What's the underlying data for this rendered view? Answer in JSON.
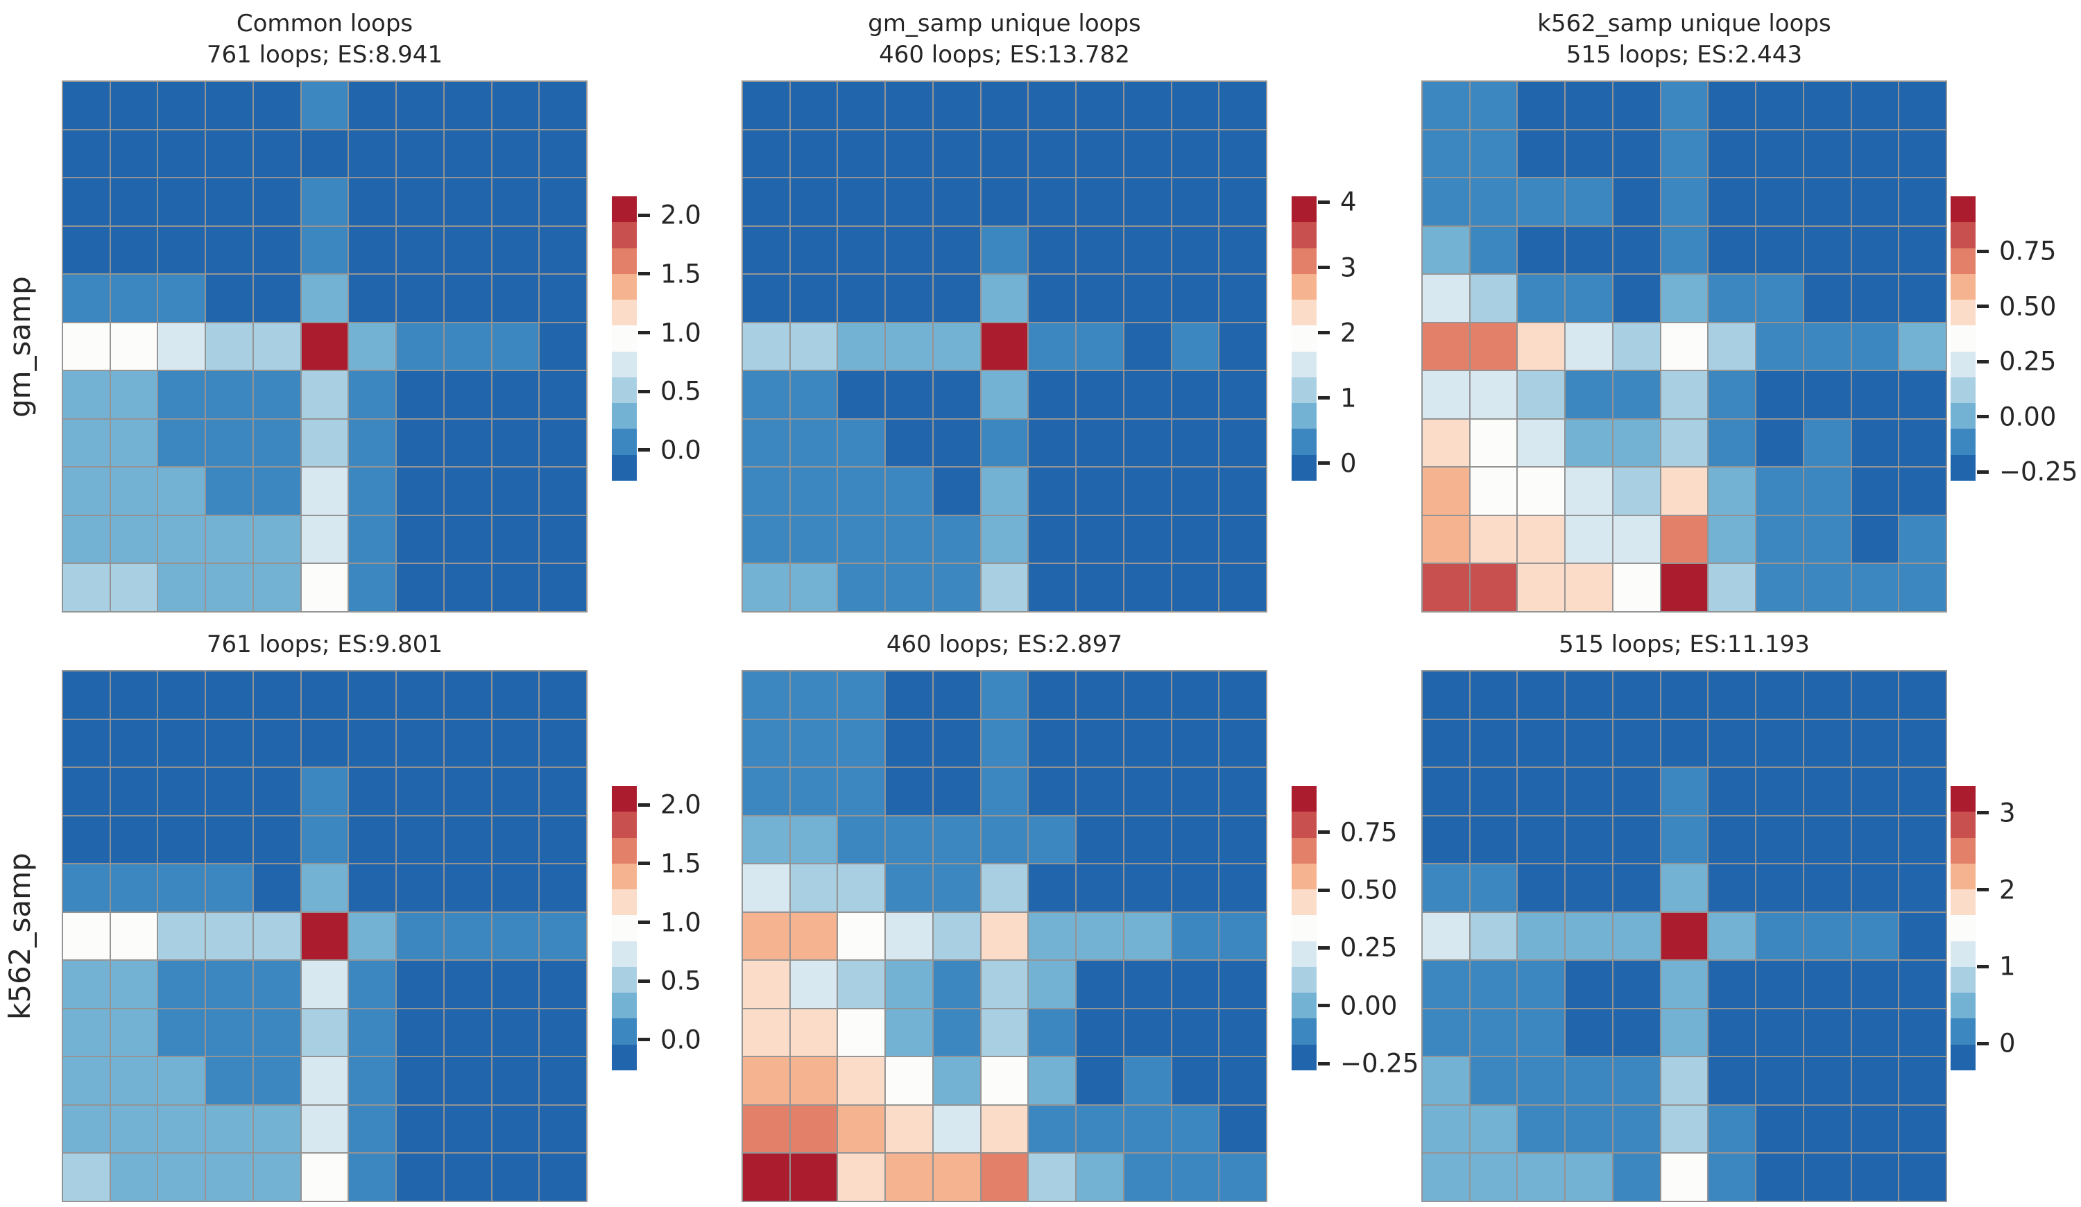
{
  "figure": {
    "background": "#ffffff",
    "text_color": "#262626",
    "grid_line_color": "#949494",
    "row_labels": [
      "gm_samp",
      "k562_samp"
    ],
    "palette": [
      "#2166ac",
      "#3c87c0",
      "#74b2d4",
      "#a9cfe3",
      "#d8e8f1",
      "#fcfcfb",
      "#fbdcc9",
      "#f5b390",
      "#e2806a",
      "#c8504e",
      "#aa1c2e"
    ]
  },
  "chart_data": [
    {
      "type": "heatmap",
      "panel": "top-left",
      "title": "Common loops",
      "subtitle": "761 loops; ES:8.941",
      "row_label": "gm_samp",
      "loops": 761,
      "enrichment_score": 8.941,
      "vmin": -0.26,
      "vmax": 2.16,
      "legend_position": "right",
      "colorbar_tick_values": [
        2.0,
        1.5,
        1.0,
        0.5,
        0.0
      ],
      "colorbar_tick_labels": [
        "2.0",
        "1.5",
        "1.0",
        "0.5",
        "0.0"
      ],
      "values": [
        [
          -0.15,
          -0.15,
          -0.15,
          -0.15,
          -0.15,
          0.07,
          -0.15,
          -0.15,
          -0.15,
          -0.15,
          -0.15
        ],
        [
          -0.15,
          -0.15,
          -0.15,
          -0.15,
          -0.15,
          -0.15,
          -0.15,
          -0.15,
          -0.15,
          -0.15,
          -0.15
        ],
        [
          -0.15,
          -0.15,
          -0.15,
          -0.15,
          -0.15,
          0.07,
          -0.15,
          -0.15,
          -0.15,
          -0.15,
          -0.15
        ],
        [
          -0.15,
          -0.15,
          -0.15,
          -0.15,
          -0.15,
          0.07,
          -0.15,
          -0.15,
          -0.15,
          -0.15,
          -0.15
        ],
        [
          0.07,
          0.07,
          0.07,
          -0.15,
          -0.15,
          0.29,
          -0.15,
          -0.15,
          -0.15,
          -0.15,
          -0.15
        ],
        [
          0.95,
          0.95,
          0.73,
          0.51,
          0.51,
          2.05,
          0.29,
          0.07,
          0.07,
          0.07,
          -0.15
        ],
        [
          0.29,
          0.29,
          0.07,
          0.07,
          0.07,
          0.51,
          0.07,
          -0.15,
          -0.15,
          -0.15,
          -0.15
        ],
        [
          0.29,
          0.29,
          0.07,
          0.07,
          0.07,
          0.51,
          0.07,
          -0.15,
          -0.15,
          -0.15,
          -0.15
        ],
        [
          0.29,
          0.29,
          0.29,
          0.07,
          0.07,
          0.73,
          0.07,
          -0.15,
          -0.15,
          -0.15,
          -0.15
        ],
        [
          0.29,
          0.29,
          0.29,
          0.29,
          0.29,
          0.73,
          0.07,
          -0.15,
          -0.15,
          -0.15,
          -0.15
        ],
        [
          0.51,
          0.51,
          0.29,
          0.29,
          0.29,
          0.95,
          0.07,
          -0.15,
          -0.15,
          -0.15,
          -0.15
        ]
      ]
    },
    {
      "type": "heatmap",
      "panel": "top-middle",
      "title": "gm_samp unique loops",
      "subtitle": "460 loops; ES:13.782",
      "row_label": "gm_samp",
      "loops": 460,
      "enrichment_score": 13.782,
      "vmin": -0.27,
      "vmax": 4.09,
      "legend_position": "right",
      "colorbar_tick_values": [
        4,
        3,
        2,
        1,
        0
      ],
      "colorbar_tick_labels": [
        "4",
        "3",
        "2",
        "1",
        "0"
      ],
      "values": [
        [
          -0.07,
          -0.07,
          -0.07,
          -0.07,
          -0.07,
          -0.07,
          -0.07,
          -0.07,
          -0.07,
          -0.07,
          -0.07
        ],
        [
          -0.07,
          -0.07,
          -0.07,
          -0.07,
          -0.07,
          -0.07,
          -0.07,
          -0.07,
          -0.07,
          -0.07,
          -0.07
        ],
        [
          -0.07,
          -0.07,
          -0.07,
          -0.07,
          -0.07,
          -0.07,
          -0.07,
          -0.07,
          -0.07,
          -0.07,
          -0.07
        ],
        [
          -0.07,
          -0.07,
          -0.07,
          -0.07,
          -0.07,
          0.32,
          -0.07,
          -0.07,
          -0.07,
          -0.07,
          -0.07
        ],
        [
          -0.07,
          -0.07,
          -0.07,
          -0.07,
          -0.07,
          0.72,
          -0.07,
          -0.07,
          -0.07,
          -0.07,
          -0.07
        ],
        [
          1.12,
          1.12,
          0.72,
          0.72,
          0.72,
          3.89,
          0.32,
          0.32,
          -0.07,
          0.32,
          -0.07
        ],
        [
          0.32,
          0.32,
          -0.07,
          -0.07,
          -0.07,
          0.72,
          -0.07,
          -0.07,
          -0.07,
          -0.07,
          -0.07
        ],
        [
          0.32,
          0.32,
          0.32,
          -0.07,
          -0.07,
          0.32,
          -0.07,
          -0.07,
          -0.07,
          -0.07,
          -0.07
        ],
        [
          0.32,
          0.32,
          0.32,
          0.32,
          -0.07,
          0.72,
          -0.07,
          -0.07,
          -0.07,
          -0.07,
          -0.07
        ],
        [
          0.32,
          0.32,
          0.32,
          0.32,
          0.32,
          0.72,
          -0.07,
          -0.07,
          -0.07,
          -0.07,
          -0.07
        ],
        [
          0.72,
          0.72,
          0.32,
          0.32,
          0.32,
          1.12,
          -0.07,
          -0.07,
          -0.07,
          -0.07,
          -0.07
        ]
      ]
    },
    {
      "type": "heatmap",
      "panel": "top-right",
      "title": "k562_samp unique loops",
      "subtitle": "515 loops; ES:2.443",
      "row_label": "gm_samp",
      "loops": 515,
      "enrichment_score": 2.443,
      "vmin": -0.29,
      "vmax": 1.0,
      "legend_position": "right",
      "colorbar_tick_values": [
        0.75,
        0.5,
        0.25,
        0.0,
        -0.25
      ],
      "colorbar_tick_labels": [
        "0.75",
        "0.50",
        "0.25",
        "0.00",
        "−0.25"
      ],
      "values": [
        [
          -0.11,
          -0.11,
          -0.23,
          -0.23,
          -0.23,
          -0.11,
          -0.23,
          -0.23,
          -0.23,
          -0.23,
          -0.23
        ],
        [
          -0.11,
          -0.11,
          -0.23,
          -0.23,
          -0.23,
          -0.11,
          -0.23,
          -0.23,
          -0.23,
          -0.23,
          -0.23
        ],
        [
          -0.11,
          -0.11,
          -0.11,
          -0.11,
          -0.23,
          -0.11,
          -0.23,
          -0.23,
          -0.23,
          -0.23,
          -0.23
        ],
        [
          0.0,
          -0.11,
          -0.23,
          -0.23,
          -0.23,
          -0.11,
          -0.23,
          -0.23,
          -0.23,
          -0.23,
          -0.23
        ],
        [
          0.24,
          0.12,
          -0.11,
          -0.11,
          -0.23,
          0.0,
          -0.11,
          -0.11,
          -0.23,
          -0.23,
          -0.23
        ],
        [
          0.71,
          0.71,
          0.47,
          0.24,
          0.12,
          0.36,
          0.12,
          -0.11,
          -0.11,
          -0.11,
          0.0
        ],
        [
          0.24,
          0.24,
          0.12,
          -0.11,
          -0.11,
          0.12,
          -0.11,
          -0.23,
          -0.23,
          -0.23,
          -0.23
        ],
        [
          0.47,
          0.36,
          0.24,
          0.0,
          0.0,
          0.12,
          -0.11,
          -0.23,
          -0.11,
          -0.23,
          -0.23
        ],
        [
          0.59,
          0.36,
          0.36,
          0.24,
          0.12,
          0.47,
          0.0,
          -0.11,
          -0.11,
          -0.23,
          -0.23
        ],
        [
          0.59,
          0.47,
          0.47,
          0.24,
          0.24,
          0.71,
          0.0,
          -0.11,
          -0.11,
          -0.23,
          -0.11
        ],
        [
          0.82,
          0.82,
          0.47,
          0.47,
          0.36,
          0.94,
          0.12,
          -0.11,
          -0.11,
          -0.11,
          -0.11
        ]
      ]
    },
    {
      "type": "heatmap",
      "panel": "bottom-left",
      "title": "",
      "subtitle": "761 loops; ES:9.801",
      "row_label": "k562_samp",
      "loops": 761,
      "enrichment_score": 9.801,
      "vmin": -0.26,
      "vmax": 2.16,
      "legend_position": "right",
      "colorbar_tick_values": [
        2.0,
        1.5,
        1.0,
        0.5,
        0.0
      ],
      "colorbar_tick_labels": [
        "2.0",
        "1.5",
        "1.0",
        "0.5",
        "0.0"
      ],
      "values": [
        [
          -0.15,
          -0.15,
          -0.15,
          -0.15,
          -0.15,
          -0.15,
          -0.15,
          -0.15,
          -0.15,
          -0.15,
          -0.15
        ],
        [
          -0.15,
          -0.15,
          -0.15,
          -0.15,
          -0.15,
          -0.15,
          -0.15,
          -0.15,
          -0.15,
          -0.15,
          -0.15
        ],
        [
          -0.15,
          -0.15,
          -0.15,
          -0.15,
          -0.15,
          0.07,
          -0.15,
          -0.15,
          -0.15,
          -0.15,
          -0.15
        ],
        [
          -0.15,
          -0.15,
          -0.15,
          -0.15,
          -0.15,
          0.07,
          -0.15,
          -0.15,
          -0.15,
          -0.15,
          -0.15
        ],
        [
          0.07,
          0.07,
          0.07,
          0.07,
          -0.15,
          0.29,
          -0.15,
          -0.15,
          -0.15,
          -0.15,
          -0.15
        ],
        [
          0.95,
          0.95,
          0.51,
          0.51,
          0.51,
          2.05,
          0.29,
          0.07,
          0.07,
          0.07,
          0.07
        ],
        [
          0.29,
          0.29,
          0.07,
          0.07,
          0.07,
          0.73,
          0.07,
          -0.15,
          -0.15,
          -0.15,
          -0.15
        ],
        [
          0.29,
          0.29,
          0.07,
          0.07,
          0.07,
          0.51,
          0.07,
          -0.15,
          -0.15,
          -0.15,
          -0.15
        ],
        [
          0.29,
          0.29,
          0.29,
          0.07,
          0.07,
          0.73,
          0.07,
          -0.15,
          -0.15,
          -0.15,
          -0.15
        ],
        [
          0.29,
          0.29,
          0.29,
          0.29,
          0.29,
          0.73,
          0.07,
          -0.15,
          -0.15,
          -0.15,
          -0.15
        ],
        [
          0.51,
          0.29,
          0.29,
          0.29,
          0.29,
          0.95,
          0.07,
          -0.15,
          -0.15,
          -0.15,
          -0.15
        ]
      ]
    },
    {
      "type": "heatmap",
      "panel": "bottom-middle",
      "title": "",
      "subtitle": "460 loops; ES:2.897",
      "row_label": "k562_samp",
      "loops": 460,
      "enrichment_score": 2.897,
      "vmin": -0.28,
      "vmax": 0.95,
      "legend_position": "right",
      "colorbar_tick_values": [
        0.75,
        0.5,
        0.25,
        0.0,
        -0.25
      ],
      "colorbar_tick_labels": [
        "0.75",
        "0.50",
        "0.25",
        "0.00",
        "−0.25"
      ],
      "values": [
        [
          -0.11,
          -0.11,
          -0.11,
          -0.22,
          -0.22,
          -0.11,
          -0.22,
          -0.22,
          -0.22,
          -0.22,
          -0.22
        ],
        [
          -0.11,
          -0.11,
          -0.11,
          -0.22,
          -0.22,
          -0.11,
          -0.22,
          -0.22,
          -0.22,
          -0.22,
          -0.22
        ],
        [
          -0.11,
          -0.11,
          -0.11,
          -0.22,
          -0.22,
          -0.11,
          -0.22,
          -0.22,
          -0.22,
          -0.22,
          -0.22
        ],
        [
          0.0,
          0.0,
          -0.11,
          -0.11,
          -0.11,
          -0.11,
          -0.11,
          -0.22,
          -0.22,
          -0.22,
          -0.22
        ],
        [
          0.22,
          0.11,
          0.11,
          -0.11,
          -0.11,
          0.11,
          -0.22,
          -0.22,
          -0.22,
          -0.22,
          -0.22
        ],
        [
          0.56,
          0.56,
          0.34,
          0.22,
          0.11,
          0.45,
          0.0,
          0.0,
          0.0,
          -0.11,
          -0.11
        ],
        [
          0.45,
          0.22,
          0.11,
          0.0,
          -0.11,
          0.11,
          0.0,
          -0.22,
          -0.22,
          -0.22,
          -0.22
        ],
        [
          0.45,
          0.45,
          0.34,
          0.0,
          -0.11,
          0.11,
          -0.11,
          -0.22,
          -0.22,
          -0.22,
          -0.22
        ],
        [
          0.56,
          0.56,
          0.45,
          0.34,
          0.0,
          0.34,
          0.0,
          -0.22,
          -0.11,
          -0.22,
          -0.22
        ],
        [
          0.67,
          0.67,
          0.56,
          0.45,
          0.22,
          0.45,
          -0.11,
          -0.11,
          -0.11,
          -0.11,
          -0.22
        ],
        [
          0.89,
          0.89,
          0.45,
          0.56,
          0.56,
          0.67,
          0.11,
          0.0,
          -0.11,
          -0.11,
          -0.11
        ]
      ]
    },
    {
      "type": "heatmap",
      "panel": "bottom-right",
      "title": "",
      "subtitle": "515 loops; ES:11.193",
      "row_label": "k562_samp",
      "loops": 515,
      "enrichment_score": 11.193,
      "vmin": -0.35,
      "vmax": 3.35,
      "legend_position": "right",
      "colorbar_tick_values": [
        3,
        2,
        1,
        0
      ],
      "colorbar_tick_labels": [
        "3",
        "2",
        "1",
        "0"
      ],
      "values": [
        [
          -0.18,
          -0.18,
          -0.18,
          -0.18,
          -0.18,
          -0.18,
          -0.18,
          -0.18,
          -0.18,
          -0.18,
          -0.18
        ],
        [
          -0.18,
          -0.18,
          -0.18,
          -0.18,
          -0.18,
          -0.18,
          -0.18,
          -0.18,
          -0.18,
          -0.18,
          -0.18
        ],
        [
          -0.18,
          -0.18,
          -0.18,
          -0.18,
          -0.18,
          0.15,
          -0.18,
          -0.18,
          -0.18,
          -0.18,
          -0.18
        ],
        [
          -0.18,
          -0.18,
          -0.18,
          -0.18,
          -0.18,
          0.15,
          -0.18,
          -0.18,
          -0.18,
          -0.18,
          -0.18
        ],
        [
          0.15,
          0.15,
          -0.18,
          -0.18,
          -0.18,
          0.49,
          -0.18,
          -0.18,
          -0.18,
          -0.18,
          -0.18
        ],
        [
          1.16,
          0.83,
          0.49,
          0.49,
          0.49,
          3.18,
          0.49,
          0.15,
          0.15,
          0.15,
          -0.18
        ],
        [
          0.15,
          0.15,
          0.15,
          -0.18,
          -0.18,
          0.49,
          -0.18,
          -0.18,
          -0.18,
          -0.18,
          -0.18
        ],
        [
          0.15,
          0.15,
          0.15,
          -0.18,
          -0.18,
          0.49,
          -0.18,
          -0.18,
          -0.18,
          -0.18,
          -0.18
        ],
        [
          0.49,
          0.15,
          0.15,
          0.15,
          0.15,
          0.83,
          -0.18,
          -0.18,
          -0.18,
          -0.18,
          -0.18
        ],
        [
          0.49,
          0.49,
          0.15,
          0.15,
          0.15,
          0.83,
          0.15,
          -0.18,
          -0.18,
          -0.18,
          -0.18
        ],
        [
          0.49,
          0.49,
          0.49,
          0.49,
          0.15,
          1.5,
          0.15,
          -0.18,
          -0.18,
          -0.18,
          -0.18
        ]
      ]
    }
  ]
}
